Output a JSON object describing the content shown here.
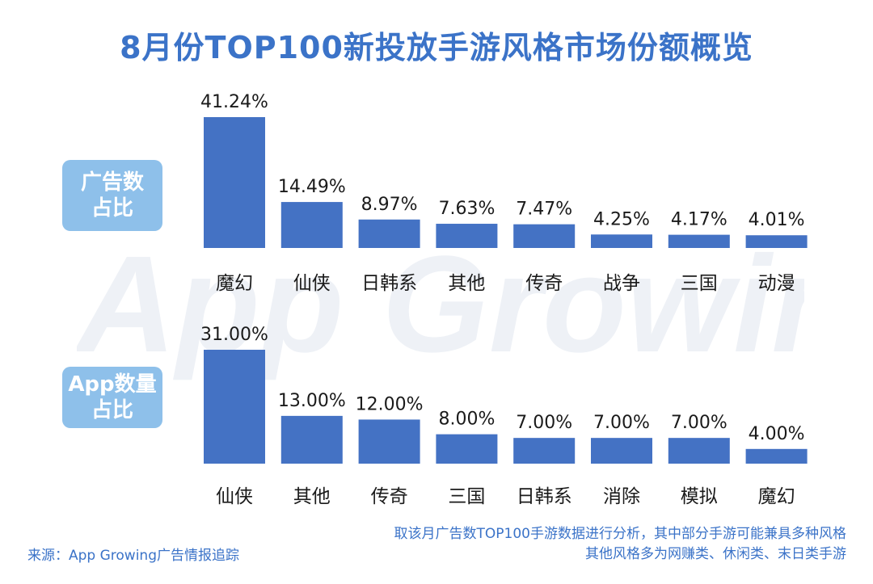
{
  "title": "8月份TOP100新投放手游风格市场份额概览",
  "watermark": "App Growing",
  "colors": {
    "bar": "#4472c4",
    "title": "#3b73c8",
    "label_bg": "#8ec0ea",
    "text": "#1a1a1a"
  },
  "chart_data": [
    {
      "type": "bar",
      "side_label": [
        "广告数",
        "占比"
      ],
      "categories": [
        "魔幻",
        "仙侠",
        "日韩系",
        "其他",
        "传奇",
        "战争",
        "三国",
        "动漫"
      ],
      "values": [
        41.24,
        14.49,
        8.97,
        7.63,
        7.47,
        4.25,
        4.17,
        4.01
      ],
      "value_labels": [
        "41.24%",
        "14.49%",
        "8.97%",
        "7.63%",
        "7.47%",
        "4.25%",
        "4.17%",
        "4.01%"
      ],
      "unit": "%",
      "ylim": [
        0,
        41.24
      ]
    },
    {
      "type": "bar",
      "side_label": [
        "App数量",
        "占比"
      ],
      "categories": [
        "仙侠",
        "其他",
        "传奇",
        "三国",
        "日韩系",
        "消除",
        "模拟",
        "魔幻"
      ],
      "values": [
        31.0,
        13.0,
        12.0,
        8.0,
        7.0,
        7.0,
        7.0,
        4.0
      ],
      "value_labels": [
        "31.00%",
        "13.00%",
        "12.00%",
        "8.00%",
        "7.00%",
        "7.00%",
        "7.00%",
        "4.00%"
      ],
      "unit": "%",
      "ylim": [
        0,
        31.0
      ]
    }
  ],
  "footer": {
    "source": "来源：App Growing广告情报追踪",
    "note_line1": "取该月广告数TOP100手游数据进行分析，其中部分手游可能兼具多种风格",
    "note_line2": "其他风格多为网赚类、休闲类、末日类手游"
  }
}
